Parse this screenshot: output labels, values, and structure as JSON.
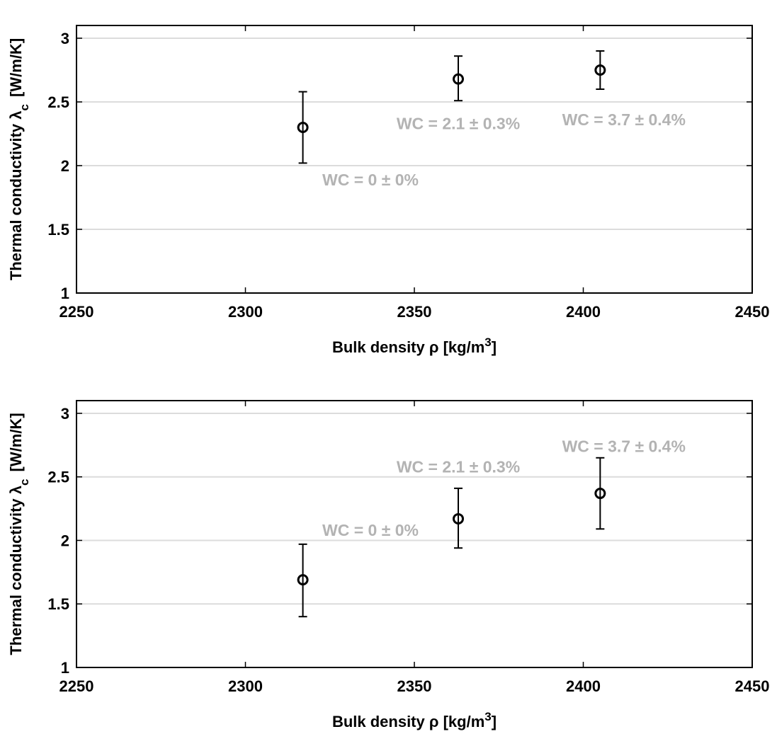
{
  "chart_data": [
    {
      "type": "scatter",
      "xlabel": "Bulk density ρ [kg/m³]",
      "ylabel": "Thermal conductivity λc [W/m/K]",
      "xlim": [
        2250,
        2450
      ],
      "ylim": [
        1,
        3.1
      ],
      "xticks": [
        "2250",
        "2300",
        "2350",
        "2400",
        "2450"
      ],
      "yticks": [
        "1",
        "1.5",
        "2",
        "2.5",
        "3"
      ],
      "grid": "horizontal",
      "points": [
        {
          "x": 2317,
          "y": 2.3,
          "err_low": 2.02,
          "err_high": 2.58
        },
        {
          "x": 2363,
          "y": 2.68,
          "err_low": 2.51,
          "err_high": 2.86
        },
        {
          "x": 2405,
          "y": 2.75,
          "err_low": 2.6,
          "err_high": 2.9
        }
      ],
      "annotations": [
        {
          "text": "WC = 0 ± 0%",
          "x": 2337,
          "y": 1.89
        },
        {
          "text": "WC = 2.1 ± 0.3%",
          "x": 2363,
          "y": 2.33
        },
        {
          "text": "WC = 3.7 ± 0.4%",
          "x": 2412,
          "y": 2.36
        }
      ]
    },
    {
      "type": "scatter",
      "xlabel": "Bulk density ρ [kg/m³]",
      "ylabel": "Thermal conductivity λc [W/m/K]",
      "xlim": [
        2250,
        2450
      ],
      "ylim": [
        1,
        3.1
      ],
      "xticks": [
        "2250",
        "2300",
        "2350",
        "2400",
        "2450"
      ],
      "yticks": [
        "1",
        "1.5",
        "2",
        "2.5",
        "3"
      ],
      "grid": "horizontal",
      "points": [
        {
          "x": 2317,
          "y": 1.69,
          "err_low": 1.4,
          "err_high": 1.97
        },
        {
          "x": 2363,
          "y": 2.17,
          "err_low": 1.94,
          "err_high": 2.41
        },
        {
          "x": 2405,
          "y": 2.37,
          "err_low": 2.09,
          "err_high": 2.65
        }
      ],
      "annotations": [
        {
          "text": "WC = 0 ± 0%",
          "x": 2337,
          "y": 2.08
        },
        {
          "text": "WC = 2.1 ± 0.3%",
          "x": 2363,
          "y": 2.58
        },
        {
          "text": "WC = 3.7 ± 0.4%",
          "x": 2412,
          "y": 2.74
        }
      ]
    }
  ]
}
